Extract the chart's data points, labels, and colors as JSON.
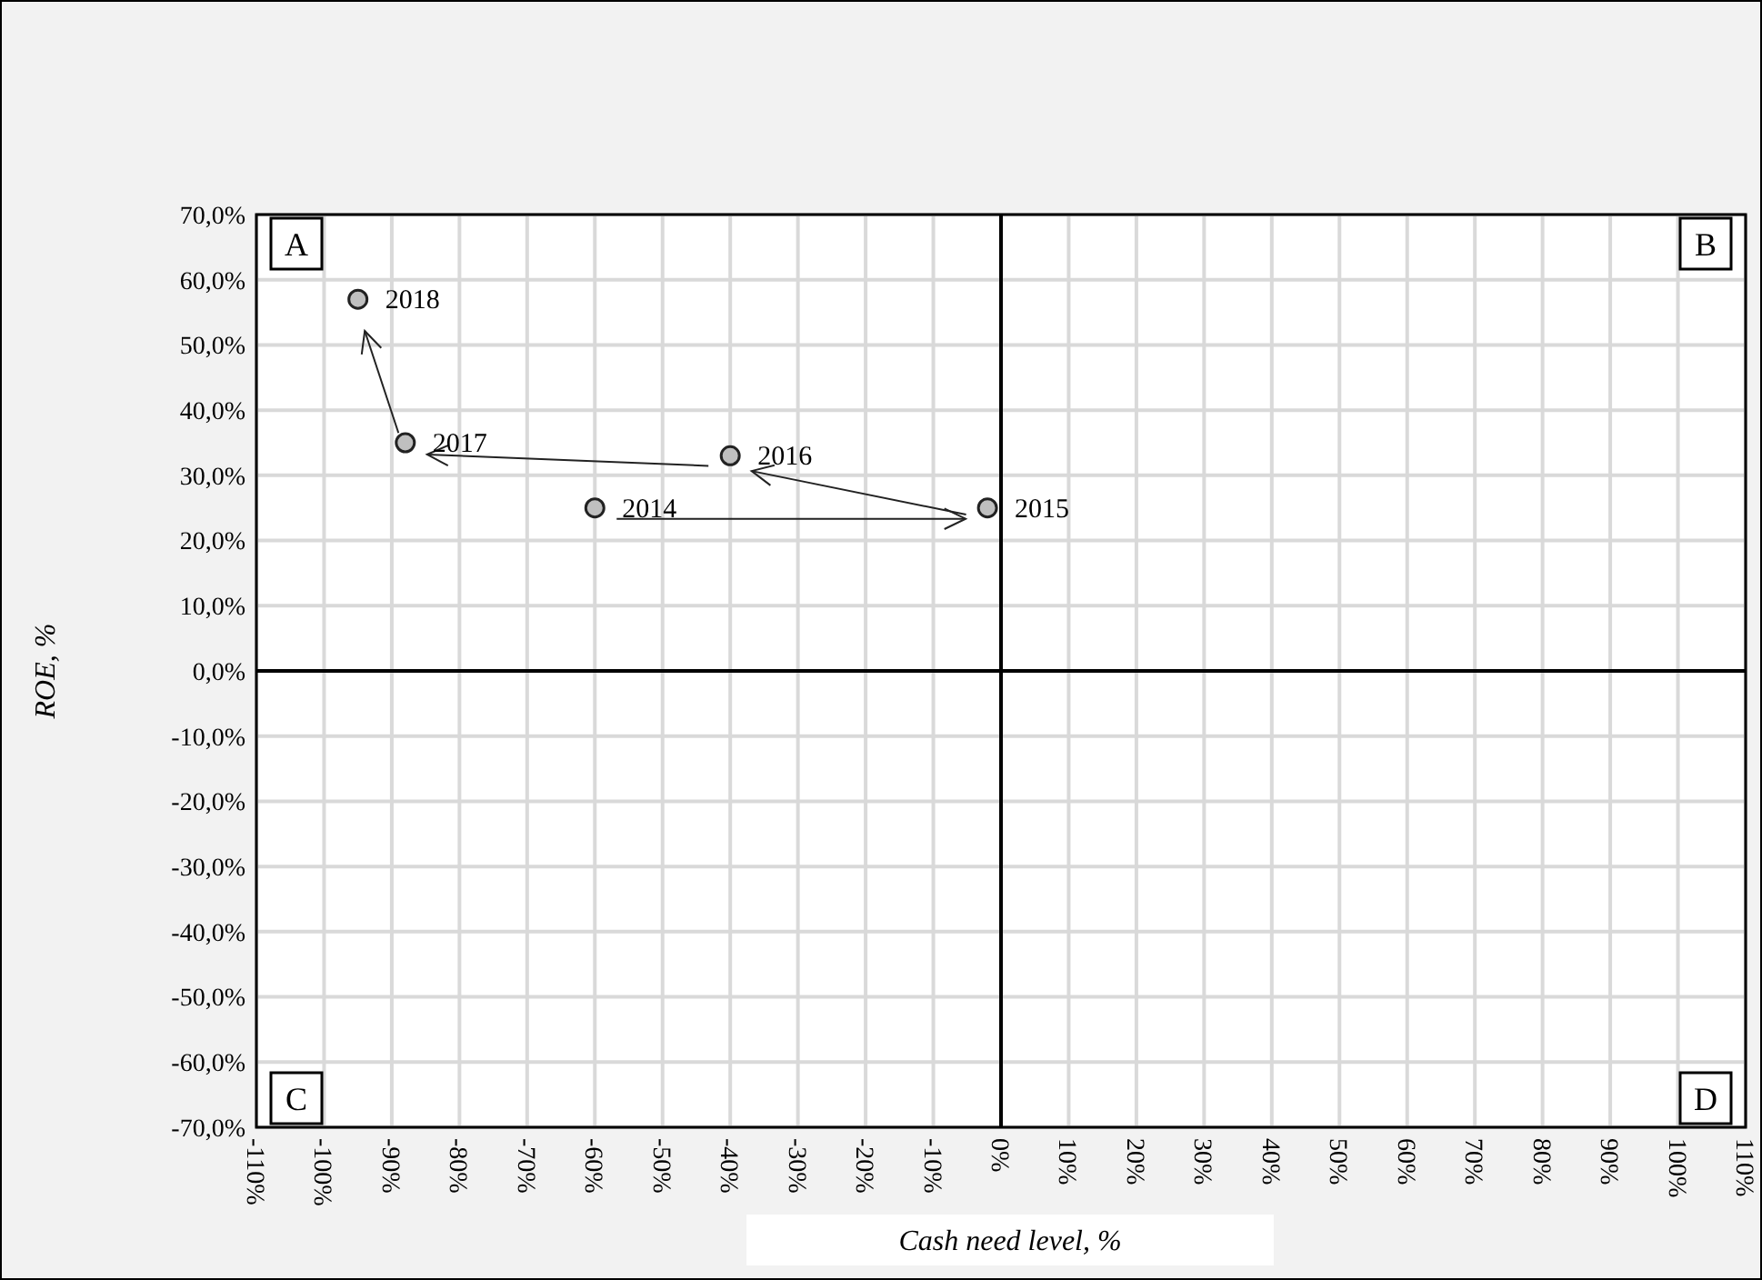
{
  "chart_data": {
    "type": "scatter",
    "xlabel": "Cash need level, %",
    "ylabel": "ROE, %",
    "x": [
      -60,
      -2,
      -40,
      -88,
      -95
    ],
    "series": [
      {
        "color": "#bfbfbf",
        "values": [
          25,
          25,
          33,
          35,
          57
        ]
      }
    ],
    "marker": "circle",
    "grid": true,
    "xlim": [
      -110,
      110
    ],
    "xticks": [
      {
        "value": -110,
        "label": "-110%"
      },
      {
        "value": -100,
        "label": "-100%"
      },
      {
        "value": -90,
        "label": "-90%"
      },
      {
        "value": -80,
        "label": "-80%"
      },
      {
        "value": -70,
        "label": "-70%"
      },
      {
        "value": -60,
        "label": "-60%"
      },
      {
        "value": -50,
        "label": "-50%"
      },
      {
        "value": -40,
        "label": "-40%"
      },
      {
        "value": -30,
        "label": "-30%"
      },
      {
        "value": -20,
        "label": "-20%"
      },
      {
        "value": -10,
        "label": "-10%"
      },
      {
        "value": 0,
        "label": "0%"
      },
      {
        "value": 10,
        "label": "10%"
      },
      {
        "value": 20,
        "label": "20%"
      },
      {
        "value": 30,
        "label": "30%"
      },
      {
        "value": 40,
        "label": "40%"
      },
      {
        "value": 50,
        "label": "50%"
      },
      {
        "value": 60,
        "label": "60%"
      },
      {
        "value": 70,
        "label": "70%"
      },
      {
        "value": 80,
        "label": "80%"
      },
      {
        "value": 90,
        "label": "90%"
      },
      {
        "value": 100,
        "label": "100%"
      },
      {
        "value": 110,
        "label": "110%"
      }
    ],
    "ylim": [
      -70,
      70
    ],
    "yticks": [
      {
        "value": -70,
        "label": "-70,0%"
      },
      {
        "value": -60,
        "label": "-60,0%"
      },
      {
        "value": -50,
        "label": "-50,0%"
      },
      {
        "value": -40,
        "label": "-40,0%"
      },
      {
        "value": -30,
        "label": "-30,0%"
      },
      {
        "value": -20,
        "label": "-20,0%"
      },
      {
        "value": -10,
        "label": "-10,0%"
      },
      {
        "value": 0,
        "label": "0,0%"
      },
      {
        "value": 10,
        "label": "10,0%"
      },
      {
        "value": 20,
        "label": "20,0%"
      },
      {
        "value": 30,
        "label": "30,0%"
      },
      {
        "value": 40,
        "label": "40,0%"
      },
      {
        "value": 50,
        "label": "50,0%"
      },
      {
        "value": 60,
        "label": "60,0%"
      },
      {
        "value": 70,
        "label": "70,0%"
      }
    ],
    "annotations": [
      "A",
      "B",
      "C",
      "D",
      {
        "text": "2014",
        "x": -60,
        "y": 25
      },
      {
        "text": "2015",
        "x": -2,
        "y": 25
      },
      {
        "text": "2016",
        "x": -40,
        "y": 33
      },
      {
        "text": "2017",
        "x": -88,
        "y": 35
      },
      {
        "text": "2018",
        "x": -95,
        "y": 57
      }
    ]
  }
}
